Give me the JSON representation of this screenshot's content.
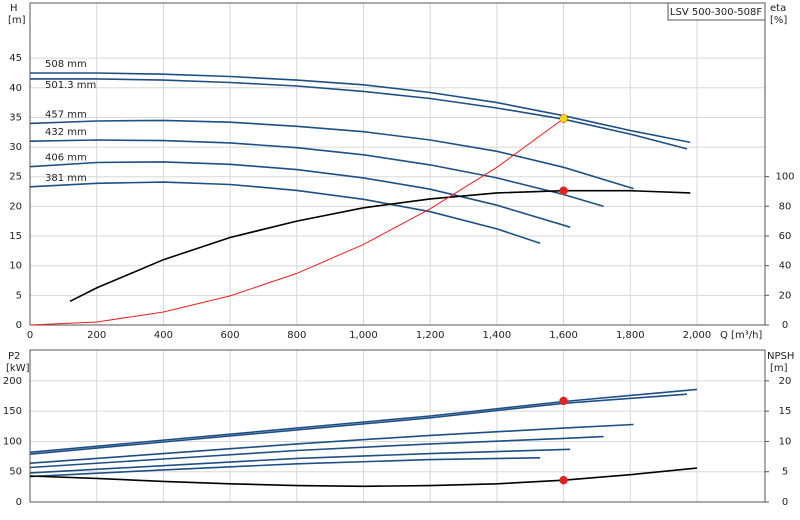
{
  "chart_data": [
    {
      "type": "line",
      "title": "LSV 500-300-508F",
      "ylabel": "H",
      "ylabel_unit": "[m]",
      "y2label": "eta",
      "y2label_unit": "[%]",
      "xlabel": "Q [m³/h]",
      "xlim": [
        0,
        2204
      ],
      "ylim": [
        0,
        54.3
      ],
      "y2lim": [
        0,
        217
      ],
      "grid": true,
      "xticks": [
        0,
        200,
        400,
        600,
        800,
        {
          "value": 1000,
          "label": "1,000"
        },
        {
          "value": 1200,
          "label": "1,200"
        },
        {
          "value": 1400,
          "label": "1,400"
        },
        {
          "value": 1600,
          "label": "1,600"
        },
        {
          "value": 1800,
          "label": "1,800"
        },
        {
          "value": 2000,
          "label": "2,000"
        }
      ],
      "yticks": [
        0,
        5,
        10,
        15,
        20,
        25,
        30,
        35,
        40,
        45
      ],
      "y2ticks": [
        0,
        20,
        40,
        60,
        80,
        100
      ],
      "series": [
        {
          "name": "508 mm",
          "color": "#1f4f85",
          "x": [
            0,
            200,
            400,
            600,
            800,
            1000,
            1200,
            1400,
            1600,
            1800,
            1980
          ],
          "values": [
            42.5,
            42.5,
            42.3,
            41.9,
            41.3,
            40.5,
            39.2,
            37.5,
            35.3,
            32.8,
            30.8
          ]
        },
        {
          "name": "501.3 mm",
          "color": "#1f4f85",
          "x": [
            0,
            200,
            400,
            600,
            800,
            1000,
            1200,
            1400,
            1600,
            1800,
            1970
          ],
          "values": [
            41.5,
            41.5,
            41.3,
            40.9,
            40.3,
            39.4,
            38.2,
            36.6,
            34.7,
            32.2,
            29.7
          ]
        },
        {
          "name": "457 mm",
          "color": "#1f4f85",
          "x": [
            0,
            200,
            400,
            600,
            800,
            1000,
            1200,
            1400,
            1600,
            1810
          ],
          "values": [
            34,
            34.4,
            34.5,
            34.2,
            33.5,
            32.6,
            31.2,
            29.3,
            26.6,
            23
          ]
        },
        {
          "name": "432 mm",
          "color": "#1f4f85",
          "x": [
            0,
            200,
            400,
            600,
            800,
            1000,
            1200,
            1400,
            1600,
            1720
          ],
          "values": [
            31,
            31.2,
            31.1,
            30.7,
            29.9,
            28.7,
            27,
            24.8,
            22,
            20
          ]
        },
        {
          "name": "406 mm",
          "color": "#1f4f85",
          "x": [
            0,
            200,
            400,
            600,
            800,
            1000,
            1200,
            1400,
            1620
          ],
          "values": [
            26.7,
            27.4,
            27.5,
            27.1,
            26.2,
            24.8,
            22.9,
            20.2,
            16.5
          ]
        },
        {
          "name": "381 mm",
          "color": "#1f4f85",
          "x": [
            0,
            200,
            400,
            600,
            800,
            1000,
            1200,
            1400,
            1530
          ],
          "values": [
            23.3,
            23.9,
            24.1,
            23.7,
            22.7,
            21.2,
            19.1,
            16.2,
            13.8
          ]
        },
        {
          "color": "#000000",
          "axis": "y2",
          "x": [
            120,
            200,
            400,
            600,
            800,
            1000,
            1200,
            1400,
            1600,
            1800,
            1980
          ],
          "values": [
            16,
            25,
            44,
            59,
            70,
            79,
            85,
            89,
            90.5,
            90.5,
            89
          ]
        },
        {
          "color": "#e82020",
          "x": [
            0,
            200,
            400,
            600,
            800,
            1000,
            1200,
            1400,
            1600
          ],
          "values": [
            0,
            0.5,
            2.2,
            4.9,
            8.7,
            13.6,
            19.6,
            26.6,
            34.8
          ]
        },
        {
          "color": "#ffd700",
          "marker": true,
          "x": [
            1600
          ],
          "values": [
            34.8
          ]
        },
        {
          "color": "#e82020",
          "marker": true,
          "axis": "y2",
          "x": [
            1600
          ],
          "values": [
            90.5
          ]
        }
      ]
    },
    {
      "type": "line",
      "ylabel": "P2",
      "ylabel_unit": "[kW]",
      "y2label": "NPSH",
      "y2label_unit": "[m]",
      "xlim": [
        0,
        2204
      ],
      "ylim": [
        0,
        251
      ],
      "y2lim": [
        0,
        25.1
      ],
      "grid": true,
      "xticks": [
        0,
        200,
        400,
        600,
        800,
        1000,
        1200,
        1400,
        1600,
        1800,
        2000
      ],
      "yticks": [
        0,
        50,
        100,
        150,
        200
      ],
      "y2ticks": [
        0,
        5,
        10,
        15,
        20
      ],
      "series": [
        {
          "color": "#1f4f85",
          "x": [
            0,
            400,
            800,
            1200,
            1600,
            2000
          ],
          "values": [
            82,
            102,
            122,
            142,
            166,
            186
          ]
        },
        {
          "color": "#1f4f85",
          "x": [
            0,
            400,
            800,
            1200,
            1600,
            1970
          ],
          "values": [
            79,
            99,
            119,
            139,
            163,
            178
          ]
        },
        {
          "color": "#1f4f85",
          "x": [
            0,
            400,
            800,
            1200,
            1600,
            1810
          ],
          "values": [
            64,
            80,
            96,
            110,
            122,
            128
          ]
        },
        {
          "color": "#1f4f85",
          "x": [
            0,
            400,
            800,
            1200,
            1600,
            1720
          ],
          "values": [
            57,
            71,
            85,
            96,
            105,
            108
          ]
        },
        {
          "color": "#1f4f85",
          "x": [
            0,
            400,
            800,
            1200,
            1620
          ],
          "values": [
            48,
            60,
            72,
            80,
            87
          ]
        },
        {
          "color": "#1f4f85",
          "x": [
            0,
            400,
            800,
            1200,
            1530
          ],
          "values": [
            42,
            53,
            63,
            70,
            73
          ]
        },
        {
          "color": "#000000",
          "axis": "y2",
          "x": [
            0,
            200,
            400,
            600,
            800,
            1000,
            1200,
            1400,
            1600,
            1800,
            2000
          ],
          "values": [
            4.3,
            3.9,
            3.4,
            3.0,
            2.7,
            2.6,
            2.7,
            3.0,
            3.6,
            4.5,
            5.6
          ]
        },
        {
          "color": "#e82020",
          "marker": true,
          "x": [
            1600
          ],
          "values": [
            167
          ]
        },
        {
          "color": "#e82020",
          "marker": true,
          "axis": "y2",
          "x": [
            1600
          ],
          "values": [
            3.6
          ]
        }
      ]
    }
  ]
}
